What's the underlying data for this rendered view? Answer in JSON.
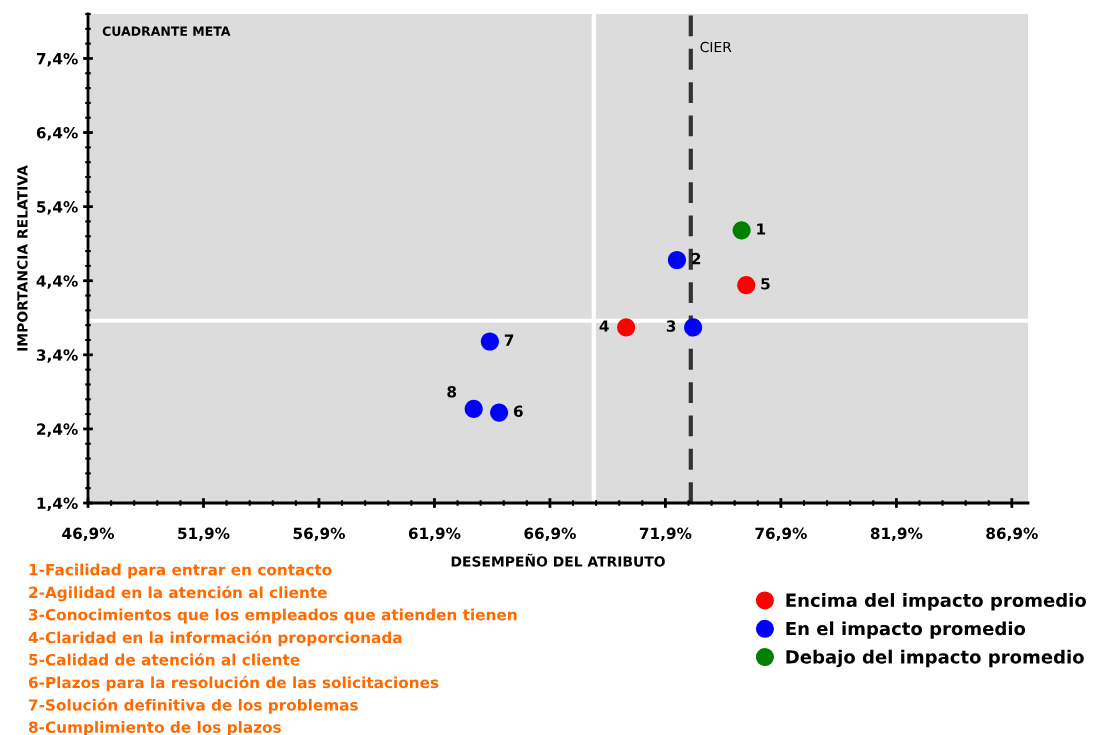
{
  "chart_data": {
    "type": "scatter",
    "xlabel": "DESEMPEÑO DEL ATRIBUTO",
    "ylabel": "IMPORTANCIA RELATIVA",
    "xlim": [
      46.9,
      87.6
    ],
    "ylim": [
      1.4,
      8.0
    ],
    "xticks": [
      {
        "value": 46.9,
        "label": "46,9%"
      },
      {
        "value": 51.9,
        "label": "51,9%"
      },
      {
        "value": 56.9,
        "label": "56,9%"
      },
      {
        "value": 61.9,
        "label": "61,9%"
      },
      {
        "value": 66.9,
        "label": "66,9%"
      },
      {
        "value": 71.9,
        "label": "71,9%"
      },
      {
        "value": 76.9,
        "label": "76,9%"
      },
      {
        "value": 81.9,
        "label": "81,9%"
      },
      {
        "value": 86.9,
        "label": "86,9%"
      }
    ],
    "yticks": [
      {
        "value": 1.4,
        "label": "1,4%"
      },
      {
        "value": 2.4,
        "label": "2,4%"
      },
      {
        "value": 3.4,
        "label": "3,4%"
      },
      {
        "value": 4.4,
        "label": "4,4%"
      },
      {
        "value": 5.4,
        "label": "5,4%"
      },
      {
        "value": 6.4,
        "label": "6,4%"
      },
      {
        "value": 7.4,
        "label": "7,4%"
      }
    ],
    "grid": false,
    "legend": "bottom right",
    "marker": "circle",
    "series": [
      {
        "name": "Encima del impacto promedio",
        "color": "#ff0000",
        "x": [
          70.2,
          75.4
        ],
        "values": [
          3.77,
          4.34
        ]
      },
      {
        "name": "En el impacto promedio",
        "color": "#0000ff",
        "x": [
          72.4,
          73.1,
          64.7,
          64.3,
          63.6
        ],
        "values": [
          4.68,
          3.77,
          2.62,
          3.58,
          2.67
        ]
      },
      {
        "name": "Debajo del impacto promedio",
        "color": "#008000",
        "x": [
          75.2
        ],
        "values": [
          5.08
        ]
      }
    ],
    "ref_lines": [
      {
        "axis": "x",
        "value": 68.8,
        "color": "#ffffff",
        "line_style": "solid"
      },
      {
        "axis": "y",
        "value": 3.86,
        "color": "#ffffff",
        "line_style": "solid"
      },
      {
        "axis": "x",
        "value": 73.0,
        "label": "CIER",
        "color": "#333333",
        "line_style": "dashed"
      }
    ],
    "annotations": [
      {
        "text": "1",
        "x": 75.2,
        "y": 5.08
      },
      {
        "text": "2",
        "x": 72.4,
        "y": 4.68
      },
      {
        "text": "3",
        "x": 73.1,
        "y": 3.77
      },
      {
        "text": "4",
        "x": 70.2,
        "y": 3.77
      },
      {
        "text": "5",
        "x": 75.4,
        "y": 4.34
      },
      {
        "text": "6",
        "x": 64.7,
        "y": 2.62
      },
      {
        "text": "7",
        "x": 64.3,
        "y": 3.58
      },
      {
        "text": "8",
        "x": 63.6,
        "y": 2.67
      },
      "CUADRANTE META",
      "1-Facilidad para entrar en contacto",
      "2-Agilidad en la atención al cliente",
      "3-Conocimientos que los empleados que atienden tienen",
      "4-Claridad en la información proporcionada",
      "5-Calidad de atención al cliente",
      "6-Plazos para la resolución de las solicitaciones",
      "7-Solución definitiva de los problemas",
      "8-Cumplimiento de los plazos"
    ]
  }
}
